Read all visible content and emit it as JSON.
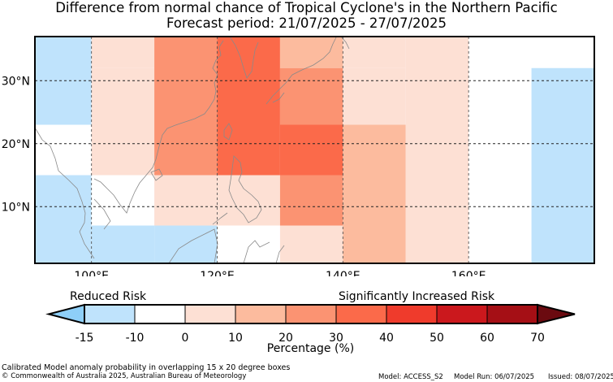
{
  "title": {
    "line1": "Difference from normal chance of Tropical Cyclone's in the Northern Pacific",
    "line2": "Forecast period: 21/07/2025 - 27/07/2025"
  },
  "map": {
    "lon_range": [
      91,
      180
    ],
    "lat_range": [
      1,
      37
    ],
    "lon_ticks": [
      {
        "value": 100,
        "label": "100°E"
      },
      {
        "value": 120,
        "label": "120°E"
      },
      {
        "value": 140,
        "label": "140°E"
      },
      {
        "value": 160,
        "label": "160°E"
      }
    ],
    "lat_ticks": [
      {
        "value": 30,
        "label": "30°N"
      },
      {
        "value": 20,
        "label": "20°N"
      },
      {
        "value": 10,
        "label": "10°N"
      }
    ],
    "cells": [
      {
        "lon0": 91,
        "lon1": 100,
        "lat0": 23,
        "lat1": 37,
        "value": -15
      },
      {
        "lon0": 91,
        "lon1": 100,
        "lat0": 15,
        "lat1": 23,
        "value": -10
      },
      {
        "lon0": 91,
        "lon1": 100,
        "lat0": 1,
        "lat1": 15,
        "value": -15
      },
      {
        "lon0": 100,
        "lon1": 110,
        "lat0": 32,
        "lat1": 37,
        "value": 0
      },
      {
        "lon0": 100,
        "lon1": 110,
        "lat0": 15,
        "lat1": 32,
        "value": 5
      },
      {
        "lon0": 100,
        "lon1": 110,
        "lat0": 7,
        "lat1": 15,
        "value": -10
      },
      {
        "lon0": 100,
        "lon1": 110,
        "lat0": 1,
        "lat1": 7,
        "value": -15
      },
      {
        "lon0": 110,
        "lon1": 120,
        "lat0": 15,
        "lat1": 37,
        "value": 25
      },
      {
        "lon0": 110,
        "lon1": 120,
        "lat0": 7,
        "lat1": 15,
        "value": 0
      },
      {
        "lon0": 110,
        "lon1": 120,
        "lat0": 1,
        "lat1": 7,
        "value": -15
      },
      {
        "lon0": 120,
        "lon1": 130,
        "lat0": 15,
        "lat1": 37,
        "value": 32
      },
      {
        "lon0": 120,
        "lon1": 130,
        "lat0": 7,
        "lat1": 15,
        "value": 5
      },
      {
        "lon0": 120,
        "lon1": 130,
        "lat0": 1,
        "lat1": 7,
        "value": -10
      },
      {
        "lon0": 130,
        "lon1": 140,
        "lat0": 32,
        "lat1": 37,
        "value": 15
      },
      {
        "lon0": 130,
        "lon1": 140,
        "lat0": 23,
        "lat1": 32,
        "value": 25
      },
      {
        "lon0": 130,
        "lon1": 140,
        "lat0": 15,
        "lat1": 23,
        "value": 32
      },
      {
        "lon0": 130,
        "lon1": 140,
        "lat0": 7,
        "lat1": 15,
        "value": 25
      },
      {
        "lon0": 130,
        "lon1": 140,
        "lat0": 1,
        "lat1": 7,
        "value": 5
      },
      {
        "lon0": 140,
        "lon1": 150,
        "lat0": 32,
        "lat1": 37,
        "value": 0
      },
      {
        "lon0": 140,
        "lon1": 150,
        "lat0": 23,
        "lat1": 32,
        "value": 5
      },
      {
        "lon0": 140,
        "lon1": 150,
        "lat0": 1,
        "lat1": 23,
        "value": 15
      },
      {
        "lon0": 150,
        "lon1": 160,
        "lat0": 23,
        "lat1": 37,
        "value": 0
      },
      {
        "lon0": 150,
        "lon1": 160,
        "lat0": 1,
        "lat1": 23,
        "value": 5
      },
      {
        "lon0": 160,
        "lon1": 170,
        "lat0": 1,
        "lat1": 37,
        "value": -10
      },
      {
        "lon0": 170,
        "lon1": 180,
        "lat0": 32,
        "lat1": 37,
        "value": -10
      },
      {
        "lon0": 170,
        "lon1": 180,
        "lat0": 1,
        "lat1": 32,
        "value": -15
      }
    ]
  },
  "colorbar": {
    "reduced_label": "Reduced Risk",
    "increased_label": "Significantly Increased Risk",
    "unit_label": "Percentage (%)",
    "under_color": "#8ecff8",
    "over_color": "#6b0a10",
    "bins": [
      {
        "from": -15,
        "to": -10,
        "color": "#bfe3fc"
      },
      {
        "from": -10,
        "to": 0,
        "color": "#ffffff"
      },
      {
        "from": 0,
        "to": 10,
        "color": "#fde0d4"
      },
      {
        "from": 10,
        "to": 20,
        "color": "#fcbb9e"
      },
      {
        "from": 20,
        "to": 30,
        "color": "#fb9372"
      },
      {
        "from": 30,
        "to": 40,
        "color": "#fb6a4a"
      },
      {
        "from": 40,
        "to": 50,
        "color": "#ef3b2c"
      },
      {
        "from": 50,
        "to": 60,
        "color": "#cb181d"
      },
      {
        "from": 60,
        "to": 70,
        "color": "#a50f15"
      }
    ],
    "tick_labels": [
      "-15",
      "-10",
      "0",
      "10",
      "20",
      "30",
      "40",
      "50",
      "60",
      "70"
    ]
  },
  "footer": {
    "method": "Calibrated Model anomaly probability in overlapping 15 x 20 degree boxes",
    "copyright": "© Commonwealth of Australia 2025, Australian Bureau of Meteorology",
    "model": "Model: ACCESS_S2",
    "model_run": "Model Run: 06/07/2025",
    "issued": "Issued: 08/07/2025"
  }
}
